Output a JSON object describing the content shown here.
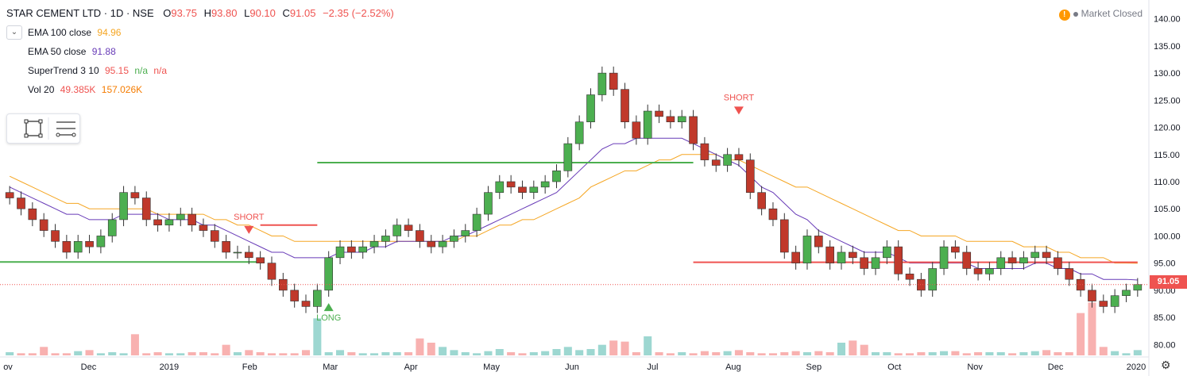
{
  "header": {
    "symbol": "STAR CEMENT LTD · 1D · NSE",
    "open_label": "O",
    "open": "93.75",
    "high_label": "H",
    "high": "93.80",
    "low_label": "L",
    "low": "90.10",
    "close_label": "C",
    "close": "91.05",
    "change": "−2.35 (−2.52%)"
  },
  "indicators": [
    {
      "name": "EMA 100 close",
      "values": [
        "94.96"
      ],
      "color": "#f5a623"
    },
    {
      "name": "EMA 50 close",
      "values": [
        "91.88"
      ],
      "color": "#673ab7"
    },
    {
      "name": "SuperTrend 3 10",
      "values": [
        "95.15",
        "n/a",
        "n/a"
      ],
      "colors": [
        "#ef5350",
        "#4caf50",
        "#ef5350"
      ]
    },
    {
      "name": "Vol 20",
      "values": [
        "49.385K",
        "157.026K"
      ],
      "colors": [
        "#ef5350",
        "#f57c00"
      ]
    }
  ],
  "market_status": "Market Closed",
  "colors": {
    "up": "#26a69a",
    "down": "#ef5350",
    "candle_up": "#4caf50",
    "candle_down": "#c0392b",
    "ema100": "#f5a623",
    "ema50": "#673ab7",
    "supertrend_up": "#4caf50",
    "supertrend_down": "#ef5350"
  },
  "chart_data": {
    "type": "candlestick",
    "y_axis": {
      "ticks": [
        "80.00",
        "85.00",
        "90.00",
        "95.00",
        "100.00",
        "105.00",
        "110.00",
        "115.00",
        "120.00",
        "125.00",
        "130.00",
        "135.00",
        "140.00"
      ],
      "range": [
        78,
        142
      ]
    },
    "x_axis": {
      "ticks": [
        "ov",
        "Dec",
        "2019",
        "Feb",
        "Mar",
        "Apr",
        "May",
        "Jun",
        "Jul",
        "Aug",
        "Sep",
        "Oct",
        "Nov",
        "Dec",
        "2020"
      ]
    },
    "last_price": "91.05",
    "close_series": [
      107,
      105,
      103,
      101,
      99,
      97,
      99,
      98,
      100,
      103,
      108,
      107,
      103,
      102,
      103,
      104,
      102,
      101,
      99,
      97,
      97,
      96,
      95,
      92,
      90,
      88,
      87,
      90,
      96,
      98,
      97,
      98,
      99,
      100,
      102,
      101,
      99,
      98,
      99,
      100,
      101,
      104,
      108,
      110,
      109,
      108,
      109,
      110,
      112,
      117,
      121,
      126,
      130,
      127,
      121,
      118,
      123,
      122,
      121,
      122,
      117,
      114,
      113,
      115,
      114,
      108,
      105,
      103,
      97,
      95,
      100,
      98,
      95,
      97,
      96,
      94,
      96,
      98,
      93,
      92,
      90,
      94,
      98,
      97,
      94,
      93,
      94,
      96,
      95,
      96,
      97,
      96,
      94,
      92,
      90,
      88,
      87,
      89,
      90,
      91.05
    ],
    "ema100_series": [
      111,
      110,
      109,
      108,
      107,
      106,
      106,
      105,
      105,
      105,
      105,
      105,
      105,
      104,
      104,
      104,
      104,
      104,
      103,
      103,
      102,
      102,
      101,
      100,
      100,
      99,
      99,
      99,
      99,
      99,
      99,
      99,
      99,
      99,
      99,
      99,
      99,
      99,
      99,
      99,
      100,
      100,
      101,
      102,
      102,
      103,
      103,
      104,
      105,
      106,
      107,
      109,
      110,
      111,
      112,
      112,
      113,
      114,
      114,
      115,
      115,
      115,
      115,
      114,
      114,
      113,
      112,
      111,
      110,
      109,
      109,
      108,
      107,
      106,
      105,
      104,
      103,
      102,
      101,
      101,
      100,
      100,
      100,
      100,
      99,
      99,
      99,
      99,
      99,
      98,
      98,
      98,
      97,
      97,
      96,
      96,
      96,
      95,
      95,
      94.96
    ],
    "ema50_series": [
      109,
      108,
      107,
      106,
      105,
      104,
      104,
      103,
      103,
      103,
      104,
      104,
      104,
      104,
      103,
      103,
      103,
      102,
      102,
      101,
      100,
      99,
      98,
      97,
      97,
      96,
      96,
      96,
      96,
      97,
      97,
      97,
      98,
      98,
      99,
      99,
      99,
      99,
      99,
      100,
      100,
      101,
      102,
      103,
      104,
      105,
      106,
      107,
      108,
      110,
      112,
      114,
      116,
      117,
      117,
      118,
      118,
      118,
      118,
      118,
      117,
      116,
      115,
      114,
      113,
      111,
      109,
      108,
      106,
      104,
      103,
      101,
      100,
      99,
      98,
      97,
      97,
      97,
      96,
      95,
      95,
      95,
      95,
      95,
      95,
      94,
      94,
      94,
      94,
      94,
      95,
      95,
      94,
      94,
      93,
      93,
      92,
      92,
      92,
      91.88
    ],
    "supertrend_series": [
      {
        "segment": "up",
        "from": 0,
        "to": 22,
        "value": 95.2
      },
      {
        "segment": "down",
        "from": 22,
        "to": 27,
        "value": 102
      },
      {
        "segment": "up",
        "from": 27,
        "to": 60,
        "value": 113.5
      },
      {
        "segment": "down",
        "from": 60,
        "to": 100,
        "value": 95.15
      }
    ],
    "signals": [
      {
        "label": "SHORT",
        "index": 21,
        "price": 103
      },
      {
        "label": "LONG",
        "index": 28,
        "price": 85
      },
      {
        "label": "SHORT",
        "index": 64,
        "price": 125
      }
    ],
    "volume_series": [
      3,
      2,
      2,
      8,
      2,
      2,
      4,
      5,
      2,
      3,
      2,
      20,
      2,
      3,
      2,
      2,
      3,
      3,
      2,
      10,
      3,
      5,
      3,
      2,
      2,
      2,
      5,
      35,
      3,
      5,
      3,
      2,
      2,
      3,
      3,
      3,
      16,
      12,
      8,
      5,
      3,
      2,
      4,
      6,
      3,
      2,
      3,
      4,
      6,
      8,
      5,
      6,
      10,
      14,
      13,
      3,
      18,
      3,
      2,
      3,
      2,
      4,
      3,
      4,
      5,
      3,
      2,
      2,
      3,
      4,
      3,
      4,
      3,
      12,
      14,
      10,
      3,
      3,
      2,
      2,
      3,
      3,
      4,
      4,
      2,
      3,
      3,
      3,
      2,
      3,
      4,
      5,
      3,
      3,
      40,
      50,
      8,
      4,
      2,
      5
    ]
  }
}
